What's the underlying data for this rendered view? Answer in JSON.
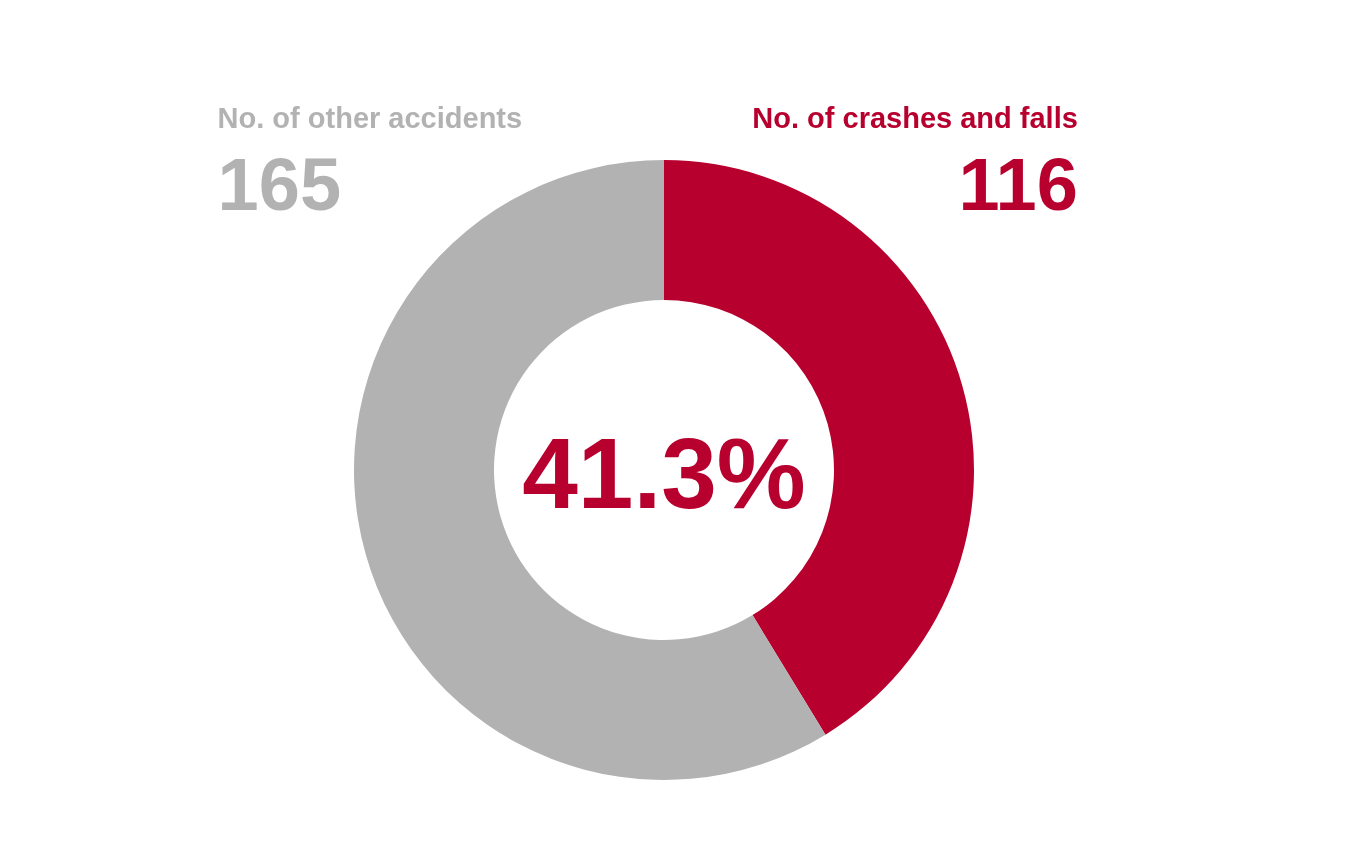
{
  "chart_data": {
    "type": "donut",
    "categories": [
      "No. of crashes and falls",
      "No. of other accidents"
    ],
    "values": [
      116,
      165
    ],
    "colors": [
      "#b8002e",
      "#b2b2b2"
    ],
    "data_labels": true,
    "annotations": [
      "41.3%"
    ]
  }
}
